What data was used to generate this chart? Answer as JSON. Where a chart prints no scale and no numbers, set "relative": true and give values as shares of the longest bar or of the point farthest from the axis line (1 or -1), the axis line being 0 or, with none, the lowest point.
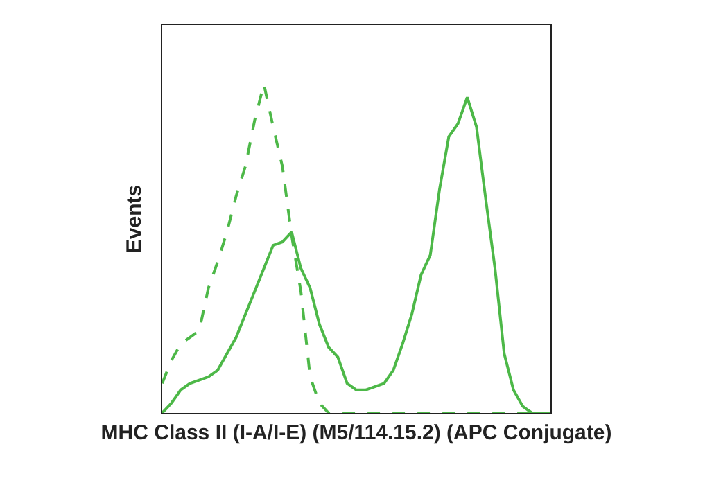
{
  "chart_data": {
    "type": "line",
    "relative": true,
    "xlabel": "MHC Class II (I-A/I-E) (M5/114.15.2) (APC Conjugate)",
    "ylabel": "Events",
    "categories": [
      null,
      null,
      null,
      null,
      null,
      null,
      null,
      null,
      null,
      null,
      null,
      null,
      null,
      null,
      null,
      null,
      null,
      null,
      null,
      null,
      null,
      null,
      null,
      null,
      null,
      null,
      null,
      null,
      null,
      null,
      null,
      null,
      null,
      null,
      null,
      null,
      null,
      null,
      null,
      null,
      null,
      null,
      null
    ],
    "series": [
      {
        "color": "#4db848",
        "line_style": "solid",
        "values": [
          0,
          0.03,
          0.07,
          0.09,
          0.1,
          0.11,
          0.13,
          0.18,
          0.23,
          0.3,
          0.37,
          0.44,
          0.51,
          0.52,
          0.55,
          0.44,
          0.38,
          0.27,
          0.2,
          0.17,
          0.09,
          0.07,
          0.07,
          0.08,
          0.09,
          0.13,
          0.21,
          0.3,
          0.42,
          0.48,
          0.68,
          0.84,
          0.88,
          0.96,
          0.87,
          0.65,
          0.44,
          0.18,
          0.07,
          0.02,
          0,
          0,
          0
        ]
      },
      {
        "color": "#4db848",
        "line_style": "dashed",
        "values": [
          0.09,
          0.16,
          0.21,
          0.23,
          0.25,
          0.38,
          0.46,
          0.55,
          0.66,
          0.75,
          0.89,
          1.0,
          0.87,
          0.75,
          0.54,
          0.37,
          0.11,
          0.03,
          0,
          0,
          0,
          0,
          0,
          0,
          0,
          0,
          0,
          0,
          0,
          0,
          0,
          0,
          0,
          0,
          0,
          0,
          0,
          0,
          0,
          0,
          0,
          0,
          0
        ]
      }
    ],
    "tick_labels": false
  }
}
